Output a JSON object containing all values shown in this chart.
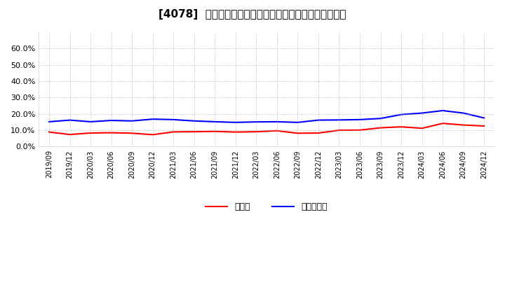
{
  "title": "[4078]  現預金、有利子負債の総資産に対する比率の推移",
  "legend_cash": "現預金",
  "legend_debt": "有利子負債",
  "color_cash": "#FF0000",
  "color_debt": "#0000FF",
  "background_color": "#FFFFFF",
  "plot_bg_color": "#FFFFFF",
  "ylim": [
    0.0,
    0.7
  ],
  "yticks": [
    0.0,
    0.1,
    0.2,
    0.3,
    0.4,
    0.5,
    0.6
  ],
  "dates": [
    "2019/09",
    "2019/12",
    "2020/03",
    "2020/06",
    "2020/09",
    "2020/12",
    "2021/03",
    "2021/06",
    "2021/09",
    "2021/12",
    "2022/03",
    "2022/06",
    "2022/09",
    "2022/12",
    "2023/03",
    "2023/06",
    "2023/09",
    "2023/12",
    "2024/03",
    "2024/06",
    "2024/09",
    "2024/12"
  ],
  "cash": [
    0.089,
    0.074,
    0.083,
    0.085,
    0.082,
    0.073,
    0.09,
    0.091,
    0.093,
    0.089,
    0.091,
    0.097,
    0.082,
    0.083,
    0.1,
    0.101,
    0.115,
    0.121,
    0.112,
    0.142,
    0.132,
    0.126
  ],
  "debt": [
    0.152,
    0.162,
    0.152,
    0.16,
    0.157,
    0.168,
    0.165,
    0.157,
    0.152,
    0.148,
    0.151,
    0.152,
    0.148,
    0.162,
    0.163,
    0.165,
    0.172,
    0.196,
    0.205,
    0.22,
    0.205,
    0.175
  ],
  "grid_color": "#AAAAAA",
  "grid_linestyle": ":",
  "grid_linewidth": 0.6,
  "line_width": 1.5,
  "tick_fontsize": 7,
  "title_fontsize": 11,
  "legend_fontsize": 9
}
